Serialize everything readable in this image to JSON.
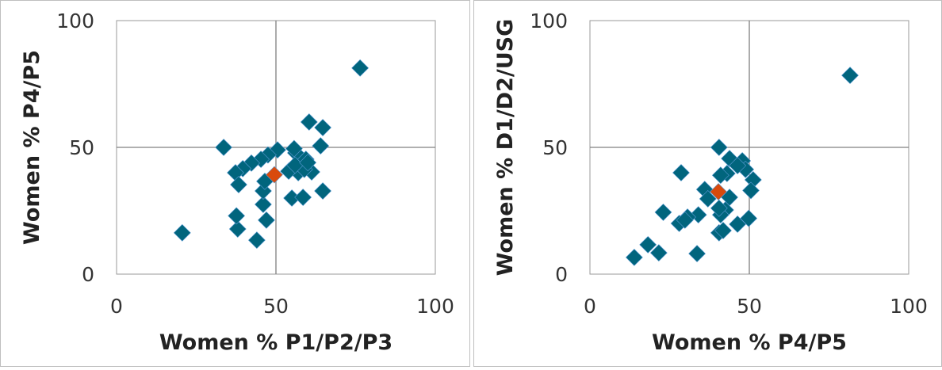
{
  "chart_data": [
    {
      "type": "scatter",
      "xlabel": "Women % P1/P2/P3",
      "ylabel": "Women % P4/P5",
      "xlim": [
        0,
        100
      ],
      "ylim": [
        0,
        100
      ],
      "xticks": [
        "0",
        "50",
        "100"
      ],
      "yticks": [
        "0",
        "50",
        "100"
      ],
      "reference_lines": {
        "x": 50,
        "y": 50
      },
      "series_color": "#01657d",
      "highlight_color": "#d94a0c",
      "points": [
        [
          76.4,
          81.3
        ],
        [
          60.4,
          60
        ],
        [
          64.7,
          57.8
        ],
        [
          64,
          50.6
        ],
        [
          33.6,
          50
        ],
        [
          64.7,
          32.8
        ],
        [
          20.6,
          16.3
        ],
        [
          44,
          13.4
        ],
        [
          38,
          17.8
        ],
        [
          37.6,
          23
        ],
        [
          47,
          21.3
        ],
        [
          46,
          27.5
        ],
        [
          55,
          30
        ],
        [
          58.5,
          30.3
        ],
        [
          50.5,
          49
        ],
        [
          47.5,
          47
        ],
        [
          45.3,
          45.3
        ],
        [
          42.3,
          43.8
        ],
        [
          39.6,
          41.6
        ],
        [
          37.3,
          40
        ],
        [
          38.3,
          35.3
        ],
        [
          46,
          32.8
        ],
        [
          46.5,
          36.6
        ],
        [
          56.2,
          47.8
        ],
        [
          55.7,
          49.5
        ],
        [
          59.4,
          45.3
        ],
        [
          61.2,
          40.3
        ],
        [
          57,
          40
        ],
        [
          54,
          40.6
        ],
        [
          58.9,
          41.3
        ],
        [
          56,
          43
        ],
        [
          60,
          44
        ]
      ],
      "highlight": [
        [
          49.5,
          39.2
        ]
      ]
    },
    {
      "type": "scatter",
      "xlabel": "Women % P4/P5",
      "ylabel": "Women % D1/D2/USG",
      "xlim": [
        0,
        100
      ],
      "ylim": [
        0,
        100
      ],
      "xticks": [
        "0",
        "50",
        "100"
      ],
      "yticks": [
        "0",
        "50",
        "100"
      ],
      "reference_lines": {
        "x": 50,
        "y": 50
      },
      "series_color": "#01657d",
      "highlight_color": "#d94a0c",
      "points": [
        [
          81.6,
          78.4
        ],
        [
          40.5,
          50
        ],
        [
          43.8,
          45.6
        ],
        [
          47.8,
          44.7
        ],
        [
          48.8,
          41.3
        ],
        [
          46.3,
          42.8
        ],
        [
          43,
          39.7
        ],
        [
          41,
          39
        ],
        [
          51.2,
          37.2
        ],
        [
          50.5,
          33
        ],
        [
          36,
          33.4
        ],
        [
          37,
          29.7
        ],
        [
          43.8,
          30.3
        ],
        [
          28.6,
          40
        ],
        [
          42.5,
          25.3
        ],
        [
          41,
          23.4
        ],
        [
          34,
          23.4
        ],
        [
          30.6,
          22.5
        ],
        [
          28,
          20
        ],
        [
          29.8,
          21.3
        ],
        [
          23,
          24.4
        ],
        [
          49.8,
          22
        ],
        [
          46.3,
          19.7
        ],
        [
          40.5,
          16.3
        ],
        [
          41.8,
          17.2
        ],
        [
          18.2,
          11.6
        ],
        [
          21.6,
          8.4
        ],
        [
          33.6,
          8.1
        ],
        [
          13.9,
          6.6
        ],
        [
          40.5,
          26
        ]
      ],
      "highlight": [
        [
          40.3,
          32.5
        ]
      ]
    }
  ]
}
